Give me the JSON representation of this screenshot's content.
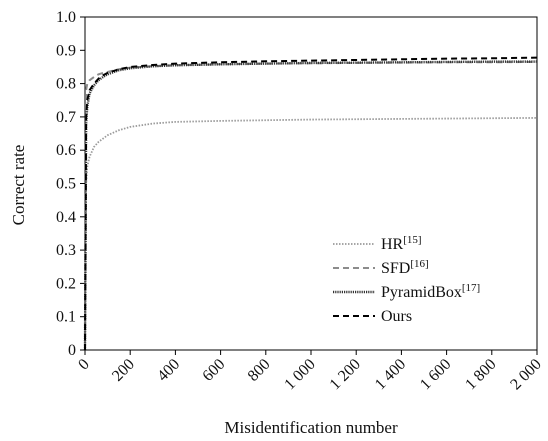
{
  "chart_data": {
    "type": "line",
    "title": "",
    "xlabel": "Misidentification number",
    "ylabel": "Correct rate",
    "xlim": [
      0,
      2000
    ],
    "ylim": [
      0,
      1.0
    ],
    "x_ticks": [
      0,
      200,
      400,
      600,
      800,
      1000,
      1200,
      1400,
      1600,
      1800,
      2000
    ],
    "x_tick_labels": [
      "0",
      "200",
      "400",
      "600",
      "800",
      "1 000",
      "1 200",
      "1 400",
      "1 600",
      "1 800",
      "2 000"
    ],
    "y_ticks": [
      0,
      0.1,
      0.2,
      0.3,
      0.4,
      0.5,
      0.6,
      0.7,
      0.8,
      0.9,
      1.0
    ],
    "y_tick_labels": [
      "0",
      "0.1",
      "0.2",
      "0.3",
      "0.4",
      "0.5",
      "0.6",
      "0.7",
      "0.8",
      "0.9",
      "1.0"
    ],
    "grid": false,
    "legend_position": "bottom-right",
    "series": [
      {
        "name": "HR",
        "ref": "[15]",
        "color": "#9a9a9a",
        "dash": "dotted",
        "x": [
          0,
          5,
          10,
          20,
          40,
          60,
          80,
          100,
          150,
          200,
          300,
          400,
          600,
          800,
          1000,
          1200,
          1400,
          1600,
          1800,
          2000
        ],
        "y": [
          0.0,
          0.5,
          0.55,
          0.58,
          0.61,
          0.625,
          0.635,
          0.645,
          0.66,
          0.67,
          0.68,
          0.685,
          0.688,
          0.69,
          0.692,
          0.693,
          0.694,
          0.695,
          0.696,
          0.697
        ]
      },
      {
        "name": "SFD",
        "ref": "[16]",
        "color": "#8c8c8c",
        "dash": "dashed",
        "x": [
          0,
          5,
          10,
          20,
          40,
          60,
          80,
          100,
          150,
          200,
          300,
          400,
          600,
          800,
          1000,
          1200,
          1400,
          1600,
          1800,
          2000
        ],
        "y": [
          0.0,
          0.78,
          0.8,
          0.81,
          0.82,
          0.828,
          0.832,
          0.835,
          0.843,
          0.848,
          0.852,
          0.855,
          0.858,
          0.86,
          0.861,
          0.862,
          0.863,
          0.864,
          0.864,
          0.865
        ]
      },
      {
        "name": "PyramidBox",
        "ref": "[17]",
        "color": "#333333",
        "dash": "dense-dotted",
        "x": [
          0,
          5,
          10,
          20,
          40,
          60,
          80,
          100,
          150,
          200,
          300,
          400,
          600,
          800,
          1000,
          1200,
          1400,
          1600,
          1800,
          2000
        ],
        "y": [
          0.0,
          0.68,
          0.73,
          0.77,
          0.795,
          0.81,
          0.82,
          0.828,
          0.84,
          0.846,
          0.852,
          0.855,
          0.858,
          0.86,
          0.862,
          0.863,
          0.864,
          0.865,
          0.866,
          0.866
        ]
      },
      {
        "name": "Ours",
        "ref": "",
        "color": "#000000",
        "dash": "dashed",
        "x": [
          0,
          5,
          10,
          20,
          40,
          60,
          80,
          100,
          150,
          200,
          300,
          400,
          600,
          800,
          1000,
          1200,
          1400,
          1600,
          1800,
          2000
        ],
        "y": [
          0.0,
          0.7,
          0.75,
          0.78,
          0.8,
          0.815,
          0.825,
          0.832,
          0.843,
          0.85,
          0.856,
          0.86,
          0.864,
          0.867,
          0.869,
          0.871,
          0.873,
          0.875,
          0.876,
          0.878
        ]
      }
    ]
  }
}
